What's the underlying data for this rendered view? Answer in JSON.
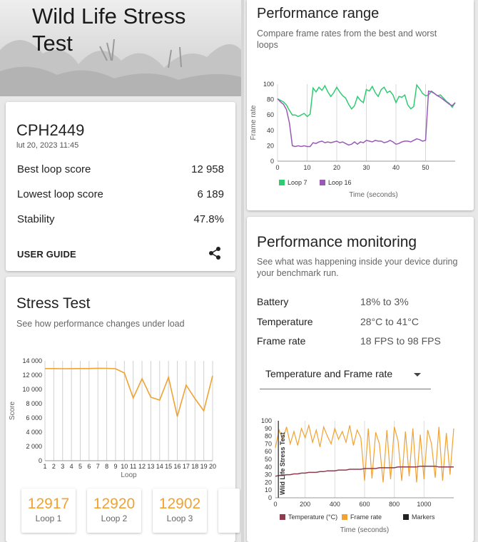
{
  "hero": {
    "title": "Wild Life Stress Test"
  },
  "summary": {
    "device": "CPH2449",
    "date": "lut 20, 2023 11:45",
    "rows": [
      {
        "label": "Best loop score",
        "value": "12 958"
      },
      {
        "label": "Lowest loop score",
        "value": "6 189"
      },
      {
        "label": "Stability",
        "value": "47.8%"
      }
    ],
    "user_guide": "USER GUIDE",
    "share_icon": "share-icon"
  },
  "stress": {
    "title": "Stress Test",
    "subtitle": "See how performance changes under load",
    "loops": [
      {
        "value": "12917",
        "label": "Loop 1"
      },
      {
        "value": "12920",
        "label": "Loop 2"
      },
      {
        "value": "12902",
        "label": "Loop 3"
      }
    ]
  },
  "range": {
    "title": "Performance range",
    "subtitle": "Compare frame rates from the best and worst loops"
  },
  "monitoring": {
    "title": "Performance monitoring",
    "subtitle": "See what was happening inside your device during your benchmark run.",
    "rows": [
      {
        "label": "Battery",
        "value": "18% to 3%"
      },
      {
        "label": "Temperature",
        "value": "28°C to 41°C"
      },
      {
        "label": "Frame rate",
        "value": "18 FPS to 98 FPS"
      }
    ],
    "select_value": "Temperature and Frame rate"
  },
  "colors": {
    "orange": "#f0a232",
    "green": "#2ecc71",
    "purple": "#9b59b6",
    "temperature": "#8e3b4f",
    "markers": "#222222"
  },
  "chart_data": [
    {
      "type": "line",
      "x": [
        1,
        2,
        3,
        4,
        5,
        6,
        7,
        8,
        9,
        10,
        11,
        12,
        13,
        14,
        15,
        16,
        17,
        18,
        19,
        20
      ],
      "series": [
        {
          "values": [
            12917,
            12920,
            12902,
            12910,
            12915,
            12920,
            12958,
            12950,
            12900,
            12300,
            8800,
            11500,
            8900,
            8500,
            11700,
            6189,
            10600,
            8700,
            7000,
            11900
          ]
        }
      ],
      "xlabel": "Loop",
      "ylabel": "Score",
      "ylim": [
        0,
        14000
      ],
      "yticks": [
        "0",
        "2 000",
        "4 000",
        "6 000",
        "8 000",
        "10 000",
        "12 000",
        "14 000"
      ],
      "grid": "vertical"
    },
    {
      "type": "line",
      "x": [
        0,
        1,
        2,
        3,
        4,
        5,
        6,
        7,
        8,
        9,
        10,
        11,
        12,
        13,
        14,
        15,
        16,
        17,
        18,
        19,
        20,
        21,
        22,
        23,
        24,
        25,
        26,
        27,
        28,
        29,
        30,
        31,
        32,
        33,
        34,
        35,
        36,
        37,
        38,
        39,
        40,
        41,
        42,
        43,
        44,
        45,
        46,
        47,
        48,
        49,
        50,
        51,
        52,
        53,
        54,
        55,
        56,
        57,
        58,
        59,
        60
      ],
      "series": [
        {
          "name": "Loop 7",
          "values": [
            81,
            79,
            77,
            73,
            66,
            60,
            60,
            58,
            60,
            62,
            58,
            61,
            95,
            90,
            96,
            92,
            98,
            90,
            84,
            89,
            96,
            90,
            85,
            82,
            74,
            68,
            72,
            84,
            79,
            76,
            93,
            91,
            97,
            89,
            84,
            93,
            96,
            89,
            91,
            86,
            76,
            84,
            83,
            86,
            73,
            68,
            71,
            99,
            94,
            88,
            85,
            86,
            91,
            88,
            85,
            86,
            82,
            78,
            75,
            70,
            76
          ]
        },
        {
          "name": "Loop 16",
          "values": [
            81,
            77,
            74,
            67,
            50,
            20,
            19,
            20,
            19,
            20,
            19,
            19,
            24,
            23,
            25,
            26,
            24,
            25,
            24,
            25,
            26,
            24,
            25,
            23,
            21,
            22,
            25,
            22,
            25,
            24,
            27,
            26,
            25,
            27,
            26,
            26,
            24,
            25,
            27,
            25,
            22,
            23,
            25,
            26,
            26,
            25,
            27,
            29,
            28,
            26,
            27,
            91,
            90,
            88,
            85,
            83,
            80,
            77,
            74,
            72,
            76
          ]
        }
      ],
      "xlabel": "Time (seconds)",
      "ylabel": "Frame rate",
      "ylim": [
        0,
        100
      ],
      "xticks": [
        0,
        10,
        20,
        30,
        40,
        50
      ],
      "legend": "bottom-left"
    },
    {
      "type": "line",
      "x": [
        0,
        25,
        50,
        75,
        100,
        125,
        150,
        175,
        200,
        225,
        250,
        275,
        300,
        325,
        350,
        375,
        400,
        425,
        450,
        475,
        500,
        525,
        550,
        575,
        600,
        625,
        650,
        675,
        700,
        725,
        750,
        775,
        800,
        825,
        850,
        875,
        900,
        925,
        950,
        975,
        1000,
        1025,
        1050,
        1075,
        1100,
        1125,
        1150,
        1175,
        1200
      ],
      "series": [
        {
          "name": "Temperature (°C)",
          "values": [
            28,
            29,
            29,
            30,
            30,
            31,
            31,
            32,
            32,
            33,
            33,
            33,
            34,
            34,
            35,
            35,
            35,
            36,
            36,
            36,
            37,
            37,
            37,
            37,
            38,
            38,
            38,
            38,
            39,
            39,
            39,
            39,
            39,
            40,
            40,
            40,
            40,
            40,
            40,
            41,
            41,
            41,
            41,
            41,
            40,
            40,
            40,
            40,
            40
          ]
        },
        {
          "name": "Frame rate",
          "values": [
            65,
            88,
            75,
            92,
            70,
            86,
            68,
            90,
            78,
            94,
            72,
            88,
            66,
            92,
            80,
            70,
            90,
            76,
            86,
            72,
            94,
            68,
            88,
            78,
            22,
            90,
            25,
            85,
            70,
            20,
            88,
            24,
            92,
            74,
            22,
            86,
            28,
            90,
            20,
            82,
            24,
            88,
            70,
            26,
            92,
            22,
            84,
            30,
            90
          ]
        }
      ],
      "markers": [
        {
          "x": 20,
          "label": "Wild Life Stress Test"
        }
      ],
      "xlabel": "Time (seconds)",
      "ylim": [
        0,
        100
      ],
      "xticks": [
        0,
        200,
        400,
        600,
        800,
        1000
      ],
      "legend": "bottom"
    }
  ]
}
